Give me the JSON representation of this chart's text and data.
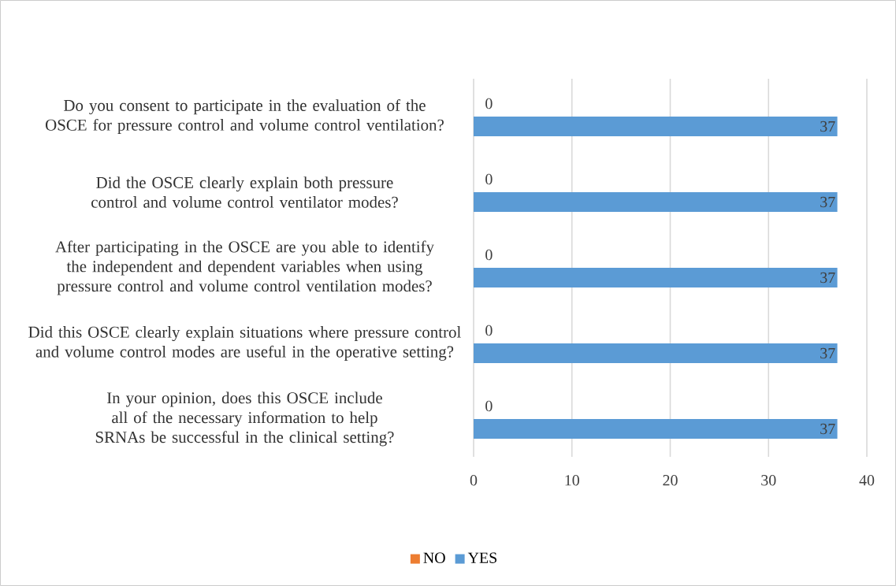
{
  "chart_data": {
    "type": "bar",
    "orientation": "horizontal",
    "categories": [
      "Do you consent to participate in the evaluation of the OSCE for pressure control and volume control ventilation?",
      "Did the OSCE clearly explain both pressure control and volume control ventilator modes?",
      "After participating in the OSCE are you able to identify the independent and dependent variables when using pressure control and volume control ventilation modes?",
      "Did this OSCE clearly explain situations where pressure control and volume control modes are useful in the operative setting?",
      "In your opinion, does this OSCE include all of the necessary information to help SRNAs be successful in the clinical setting?"
    ],
    "series": [
      {
        "name": "NO",
        "color": "#ed7d31",
        "values": [
          0,
          0,
          0,
          0,
          0
        ]
      },
      {
        "name": "YES",
        "color": "#5b9bd5",
        "values": [
          37,
          37,
          37,
          37,
          37
        ]
      }
    ],
    "xlim": [
      0,
      40
    ],
    "xticks": [
      0,
      10,
      20,
      30,
      40
    ],
    "grid": "x",
    "legend": "bottom",
    "data_labels": true
  }
}
